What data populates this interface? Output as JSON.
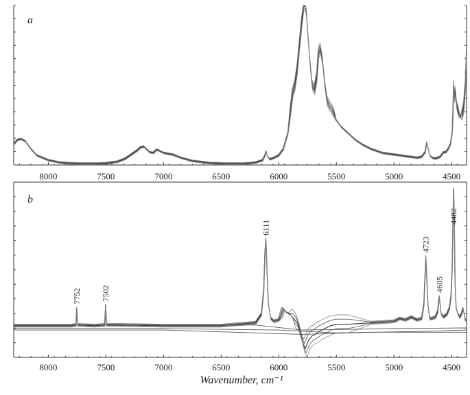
{
  "chart_data": [
    {
      "panel": "a",
      "type": "line",
      "xlabel": "",
      "ylabel": "",
      "xlim": [
        8300,
        4370
      ],
      "ylim": [
        0,
        1.0
      ],
      "x_reversed": true,
      "xticks": [
        8000,
        7500,
        7000,
        6500,
        6000,
        5500,
        5000,
        4500
      ],
      "grid": false,
      "series": [
        {
          "x": [
            8300,
            8270,
            8240,
            8200,
            8150,
            8100,
            8000,
            7900,
            7800,
            7700,
            7600,
            7500,
            7400,
            7330,
            7280,
            7230,
            7200,
            7170,
            7150,
            7120,
            7090,
            7060,
            7040,
            7000,
            6960,
            6920,
            6850,
            6750,
            6600,
            6450,
            6300,
            6200,
            6140,
            6120,
            6110,
            6100,
            6080,
            6040,
            6000,
            5960,
            5920,
            5900,
            5880,
            5860,
            5840,
            5820,
            5800,
            5785,
            5770,
            5760,
            5750,
            5730,
            5710,
            5690,
            5670,
            5655,
            5640,
            5620,
            5600,
            5580,
            5560,
            5540,
            5520,
            5500,
            5460,
            5400,
            5340,
            5280,
            5200,
            5100,
            5000,
            4950,
            4900,
            4850,
            4800,
            4760,
            4730,
            4715,
            4705,
            4690,
            4670,
            4640,
            4600,
            4570,
            4550,
            4530,
            4510,
            4495,
            4488,
            4482,
            4475,
            4468,
            4455,
            4440,
            4425,
            4410,
            4395,
            4380,
            4370
          ],
          "y": [
            0.13,
            0.155,
            0.163,
            0.15,
            0.1,
            0.06,
            0.03,
            0.015,
            0.01,
            0.008,
            0.008,
            0.01,
            0.02,
            0.04,
            0.065,
            0.09,
            0.11,
            0.115,
            0.1,
            0.08,
            0.075,
            0.095,
            0.09,
            0.075,
            0.07,
            0.065,
            0.045,
            0.025,
            0.012,
            0.008,
            0.008,
            0.015,
            0.03,
            0.06,
            0.085,
            0.06,
            0.035,
            0.045,
            0.06,
            0.1,
            0.2,
            0.33,
            0.45,
            0.5,
            0.6,
            0.75,
            0.9,
            0.99,
            1.0,
            0.95,
            0.85,
            0.65,
            0.5,
            0.47,
            0.55,
            0.7,
            0.73,
            0.65,
            0.5,
            0.4,
            0.37,
            0.35,
            0.32,
            0.28,
            0.24,
            0.2,
            0.16,
            0.13,
            0.1,
            0.075,
            0.065,
            0.06,
            0.055,
            0.05,
            0.045,
            0.05,
            0.08,
            0.14,
            0.11,
            0.06,
            0.045,
            0.04,
            0.05,
            0.08,
            0.08,
            0.1,
            0.13,
            0.2,
            0.32,
            0.5,
            0.42,
            0.46,
            0.37,
            0.33,
            0.3,
            0.31,
            0.36,
            0.5,
            0.7
          ]
        }
      ]
    },
    {
      "panel": "b",
      "type": "line",
      "xlabel": "Wavenumber, cm⁻¹",
      "ylabel": "",
      "xlim": [
        8300,
        4370
      ],
      "ylim": [
        -0.22,
        1.0
      ],
      "x_reversed": true,
      "xticks": [
        8000,
        7500,
        7000,
        6500,
        6000,
        5500,
        5000,
        4500
      ],
      "grid": false,
      "annotations": [
        {
          "label": "7752",
          "x": 7752
        },
        {
          "label": "7502",
          "x": 7502
        },
        {
          "label": "6111",
          "x": 6111
        },
        {
          "label": "4723",
          "x": 4723
        },
        {
          "label": "4605",
          "x": 4605
        },
        {
          "label": "4482",
          "x": 4482
        }
      ],
      "series": [
        {
          "x": [
            8300,
            7800,
            7760,
            7752,
            7744,
            7600,
            7510,
            7502,
            7494,
            7400,
            7000,
            6500,
            6200,
            6150,
            6130,
            6120,
            6111,
            6102,
            6090,
            6070,
            6040,
            6000,
            5980,
            5960,
            5930,
            5900,
            5870,
            5840,
            5810,
            5790,
            5770,
            5740,
            5710,
            5680,
            5650,
            5600,
            5550,
            5500,
            5400,
            5200,
            5000,
            4950,
            4900,
            4850,
            4800,
            4760,
            4740,
            4730,
            4723,
            4716,
            4705,
            4690,
            4670,
            4640,
            4620,
            4610,
            4605,
            4600,
            4590,
            4570,
            4540,
            4520,
            4505,
            4495,
            4488,
            4482,
            4476,
            4470,
            4460,
            4445,
            4430,
            4415,
            4400,
            4385,
            4370
          ],
          "y": [
            0.0,
            0.0,
            0.005,
            0.12,
            0.005,
            0.0,
            0.005,
            0.14,
            0.005,
            0.005,
            0.0,
            0.0,
            0.02,
            0.08,
            0.25,
            0.5,
            0.6,
            0.4,
            0.15,
            0.05,
            0.03,
            0.04,
            0.07,
            0.12,
            0.09,
            0.08,
            0.05,
            0.02,
            -0.05,
            -0.12,
            -0.16,
            -0.1,
            -0.07,
            -0.06,
            -0.04,
            -0.02,
            0.0,
            0.01,
            0.01,
            0.02,
            0.03,
            0.05,
            0.04,
            0.06,
            0.04,
            0.05,
            0.15,
            0.35,
            0.48,
            0.35,
            0.15,
            0.05,
            0.05,
            0.06,
            0.1,
            0.18,
            0.2,
            0.15,
            0.08,
            0.06,
            0.08,
            0.12,
            0.2,
            0.4,
            0.7,
            0.95,
            0.7,
            0.3,
            0.12,
            0.08,
            0.06,
            0.08,
            0.12,
            0.05,
            0.03
          ]
        }
      ]
    }
  ]
}
